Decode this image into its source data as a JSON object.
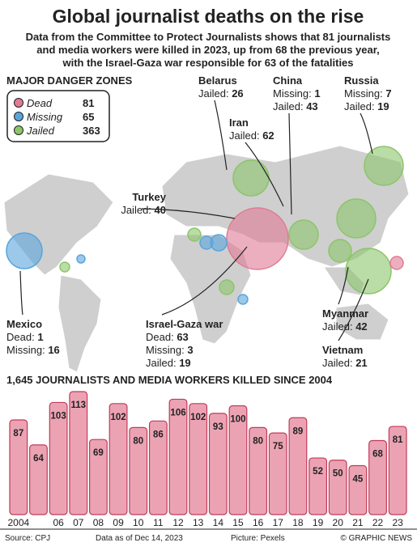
{
  "header": {
    "title": "Global journalist deaths on the rise",
    "subtitle": [
      "Data from the Committee to Protect Journalists shows that 81 journalists",
      "and media workers were killed in 2023, up from 68 the previous year,",
      "with the Israel-Gaza war responsible for 63 of the fatalities"
    ]
  },
  "map": {
    "heading": "MAJOR DANGER ZONES",
    "legend": [
      {
        "name": "Dead",
        "value": 81,
        "color": "#e07a95"
      },
      {
        "name": "Missing",
        "value": 65,
        "color": "#5aa5dc"
      },
      {
        "name": "Jailed",
        "value": 363,
        "color": "#8cc56a"
      }
    ],
    "labels": [
      {
        "name": "Belarus",
        "stats": [
          {
            "label": "Jailed:",
            "value": 26
          }
        ]
      },
      {
        "name": "China",
        "stats": [
          {
            "label": "Missing:",
            "value": 1
          },
          {
            "label": "Jailed:",
            "value": 43
          }
        ]
      },
      {
        "name": "Russia",
        "stats": [
          {
            "label": "Missing:",
            "value": 7
          },
          {
            "label": "Jailed:",
            "value": 19
          }
        ]
      },
      {
        "name": "Iran",
        "stats": [
          {
            "label": "Jailed:",
            "value": 62
          }
        ]
      },
      {
        "name": "Turkey",
        "stats": [
          {
            "label": "Jailed:",
            "value": 40
          }
        ]
      },
      {
        "name": "Mexico",
        "stats": [
          {
            "label": "Dead:",
            "value": 1
          },
          {
            "label": "Missing:",
            "value": 16
          }
        ]
      },
      {
        "name": "Israel-Gaza war",
        "stats": [
          {
            "label": "Dead:",
            "value": 63
          },
          {
            "label": "Missing:",
            "value": 3
          },
          {
            "label": "Jailed:",
            "value": 19
          }
        ]
      },
      {
        "name": "Myanmar",
        "stats": [
          {
            "label": "Jailed:",
            "value": 42
          }
        ]
      },
      {
        "name": "Vietnam",
        "stats": [
          {
            "label": "Jailed:",
            "value": 21
          }
        ]
      }
    ]
  },
  "chart_data": {
    "type": "bar",
    "title": "1,645 JOURNALISTS AND MEDIA WORKERS KILLED SINCE 2004",
    "categories": [
      "2004",
      null,
      "06",
      "07",
      "08",
      "09",
      "10",
      "11",
      "12",
      "13",
      "14",
      "15",
      "16",
      "17",
      "18",
      "19",
      "20",
      "21",
      "22",
      "23"
    ],
    "values": [
      87,
      64,
      103,
      113,
      69,
      102,
      80,
      86,
      106,
      102,
      93,
      100,
      80,
      75,
      89,
      52,
      50,
      45,
      68,
      81
    ],
    "color": "#eba3b4"
  },
  "footer": {
    "source": "Source: CPJ",
    "date": "Data as of Dec 14, 2023",
    "picture": "Picture: Pexels",
    "credit": "© GRAPHIC NEWS"
  }
}
